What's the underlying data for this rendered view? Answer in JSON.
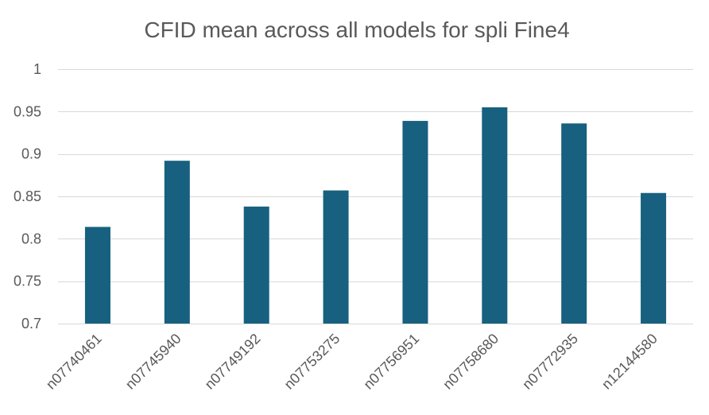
{
  "chart_data": {
    "type": "bar",
    "title": "CFID mean across all models for spli Fine4",
    "xlabel": "",
    "ylabel": "",
    "categories": [
      "n07740461",
      "n07745940",
      "n07749192",
      "n07753275",
      "n07756951",
      "n07758680",
      "n07772935",
      "n12144580"
    ],
    "values": [
      0.814,
      0.892,
      0.838,
      0.857,
      0.939,
      0.955,
      0.936,
      0.854
    ],
    "ylim": [
      0.7,
      1
    ],
    "yticks": [
      "0.7",
      "0.75",
      "0.8",
      "0.85",
      "0.9",
      "0.95",
      "1"
    ],
    "grid": true,
    "legend": "none",
    "colors": {
      "bar": "#17607F",
      "grid": "#D9D9D9",
      "text": "#595959"
    }
  }
}
